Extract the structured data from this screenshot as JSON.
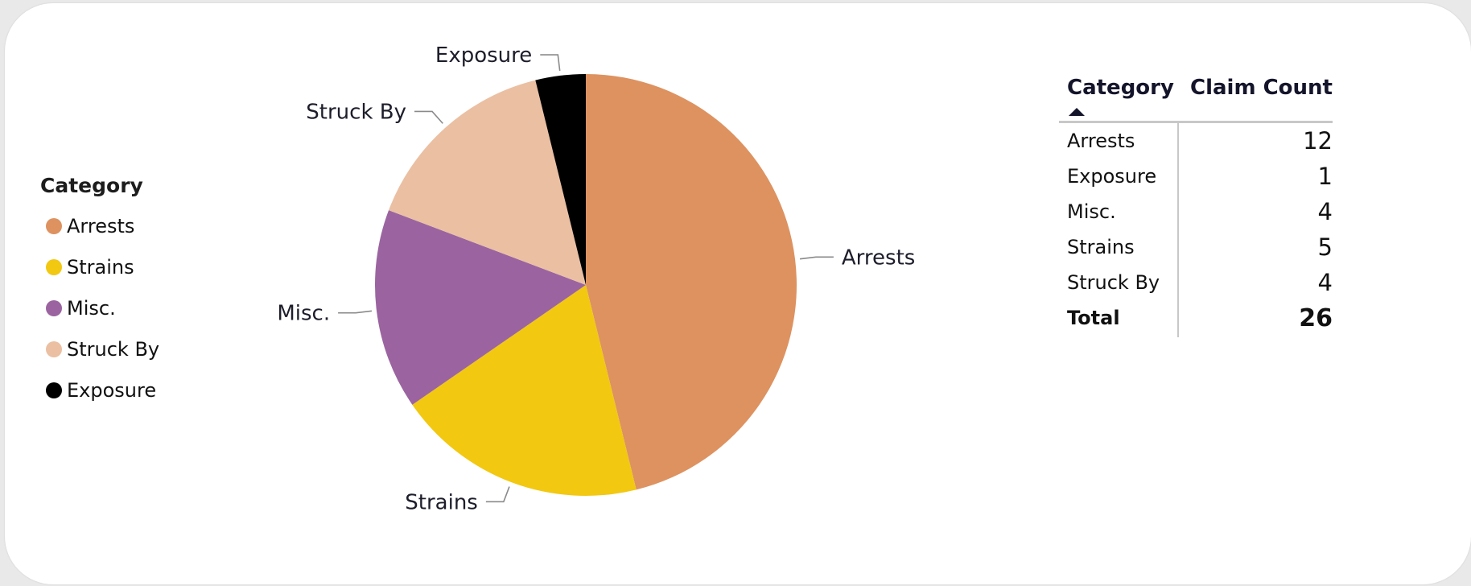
{
  "chart_data": {
    "type": "pie",
    "legend_title": "Category",
    "legend_placement": "left",
    "categories": [
      "Arrests",
      "Strains",
      "Misc.",
      "Struck By",
      "Exposure"
    ],
    "values": [
      12,
      5,
      4,
      4,
      1
    ],
    "colors": [
      "#DD9260",
      "#F2C811",
      "#9B64A0",
      "#EBBFA2",
      "#000000"
    ],
    "slice_labels": [
      "Arrests",
      "Strains",
      "Misc.",
      "Struck By",
      "Exposure"
    ]
  },
  "table": {
    "headers": {
      "category": "Category",
      "count": "Claim Count"
    },
    "sort_icon": "sort-ascending-icon",
    "rows": [
      {
        "category": "Arrests",
        "count": "12"
      },
      {
        "category": "Exposure",
        "count": "1"
      },
      {
        "category": "Misc.",
        "count": "4"
      },
      {
        "category": "Strains",
        "count": "5"
      },
      {
        "category": "Struck By",
        "count": "4"
      }
    ],
    "total": {
      "label": "Total",
      "count": "26"
    }
  }
}
